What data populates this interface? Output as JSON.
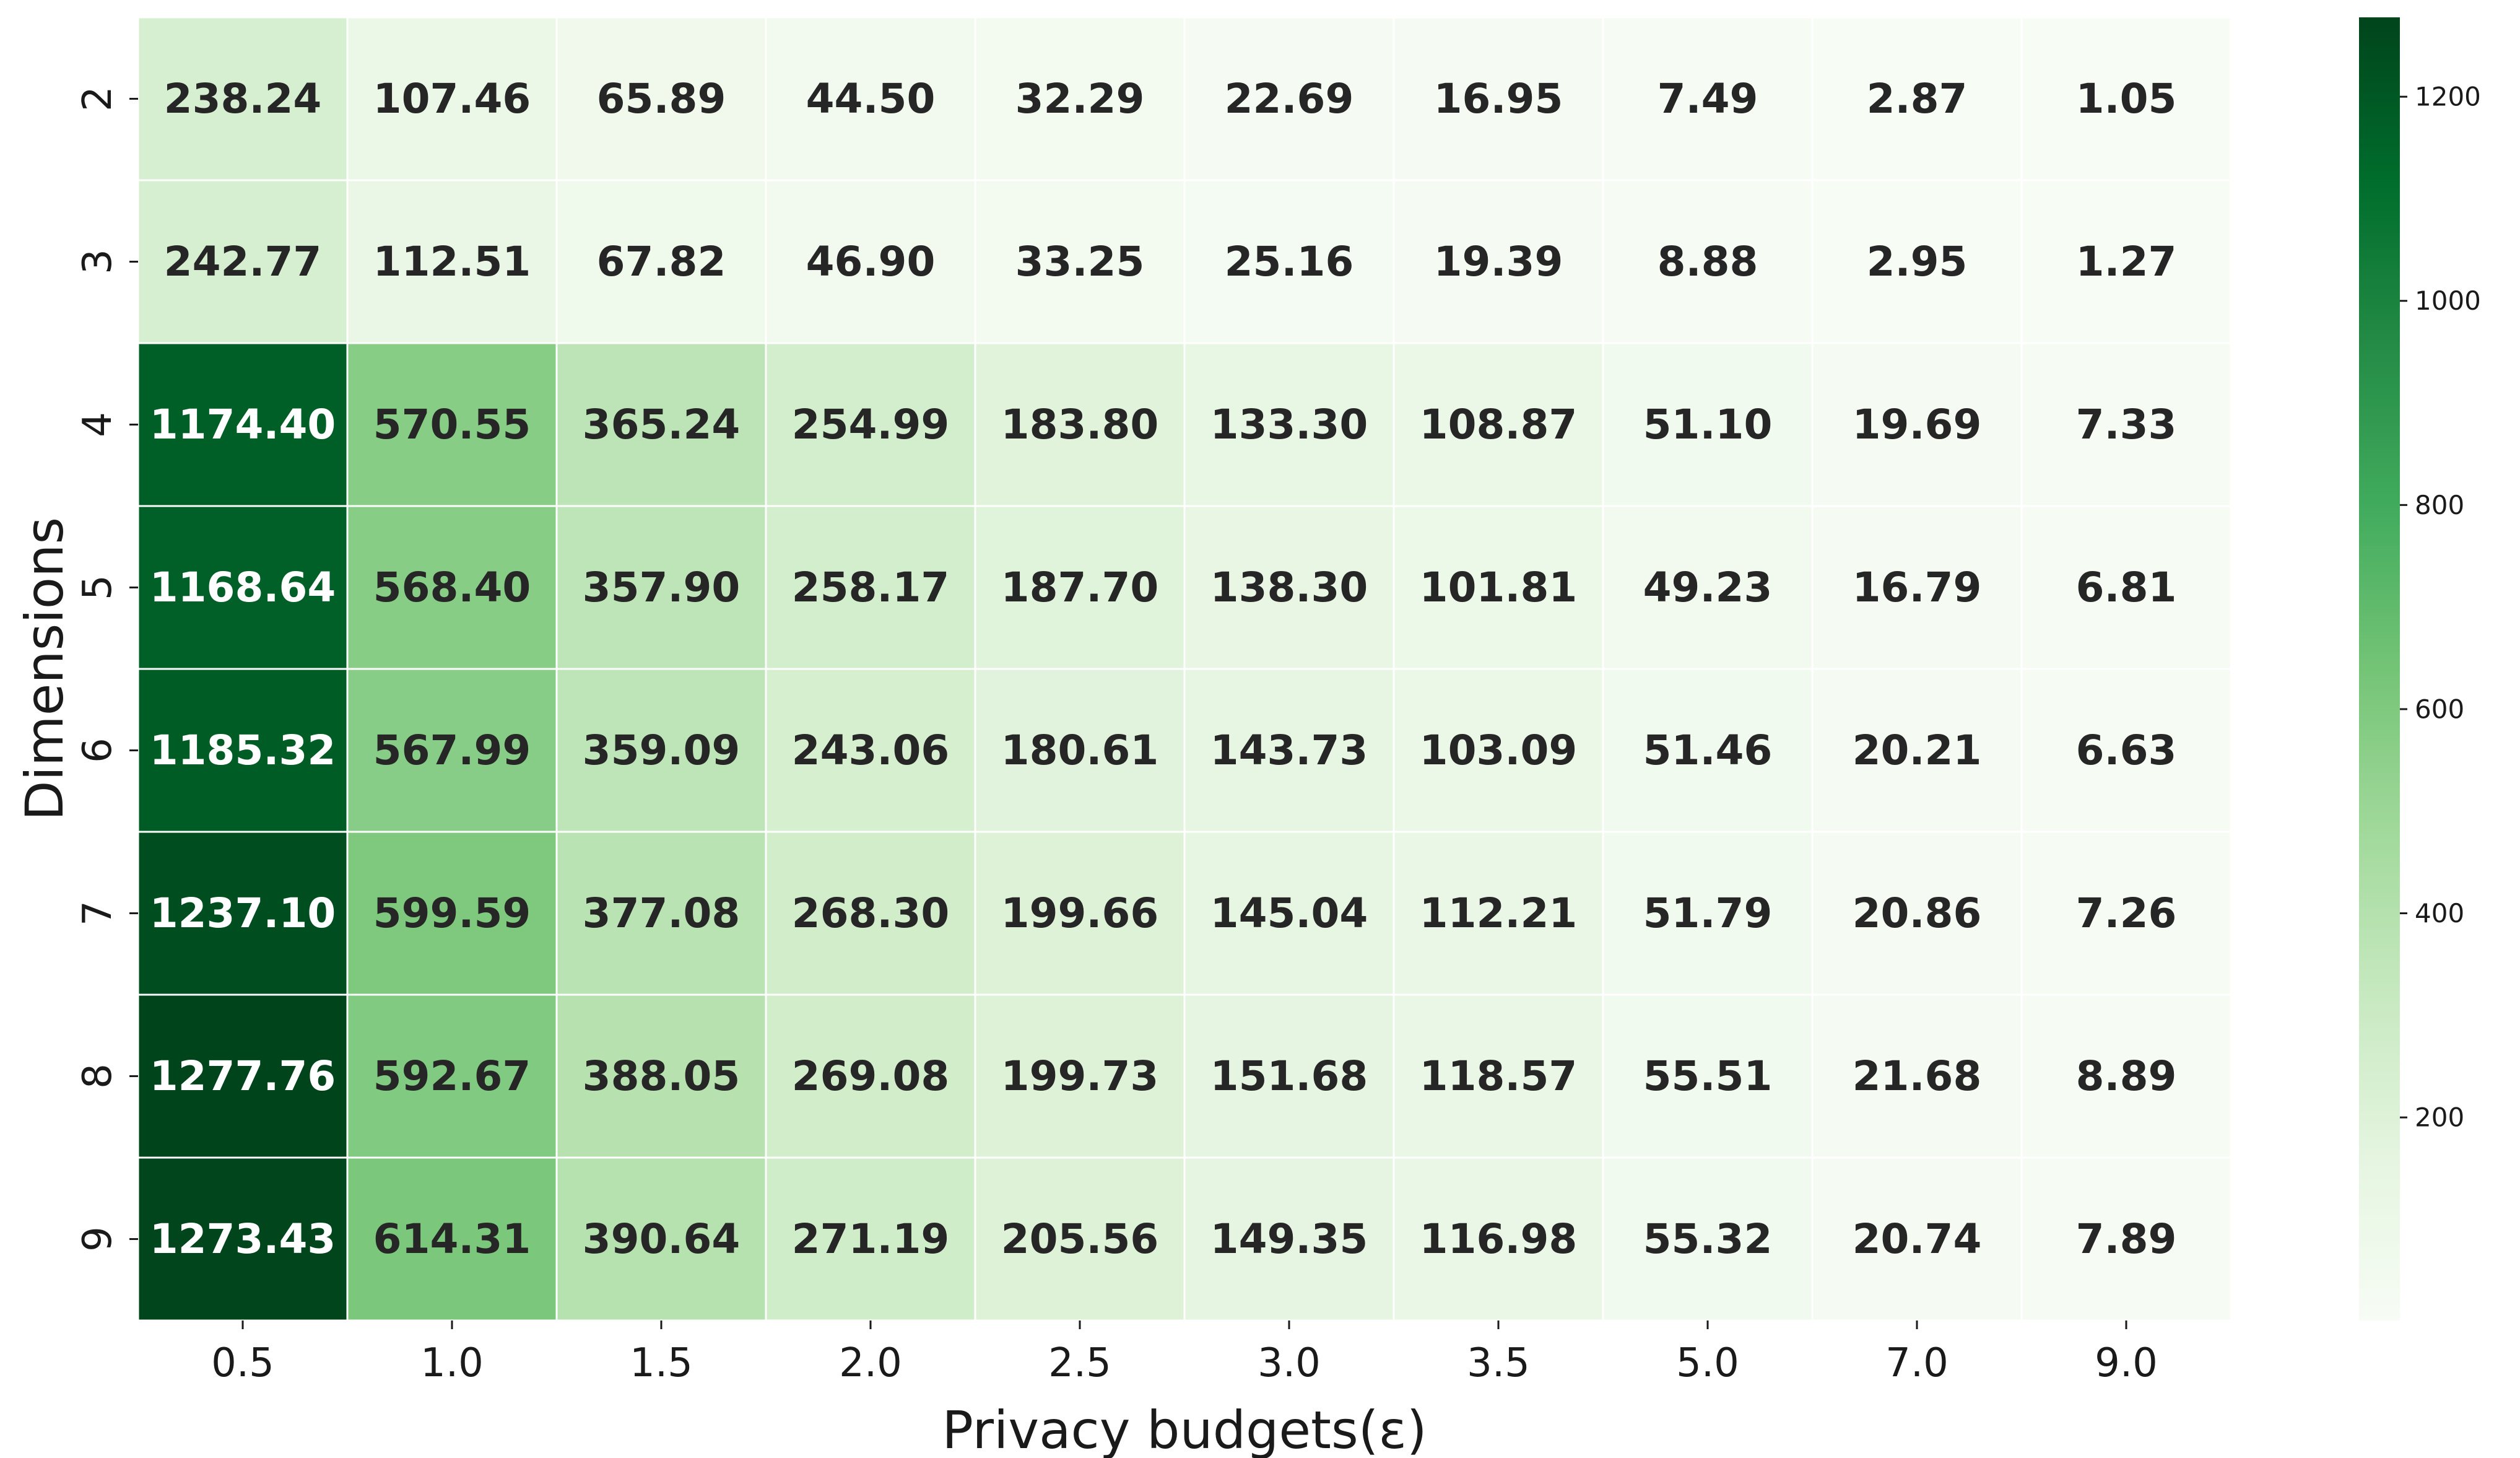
{
  "chart_data": {
    "type": "heatmap",
    "xlabel": "Privacy budgets(ε)",
    "ylabel": "Dimensions",
    "x_categories": [
      "0.5",
      "1.0",
      "1.5",
      "2.0",
      "2.5",
      "3.0",
      "3.5",
      "5.0",
      "7.0",
      "9.0"
    ],
    "y_categories": [
      "2",
      "3",
      "4",
      "5",
      "6",
      "7",
      "8",
      "9"
    ],
    "values": [
      [
        238.24,
        107.46,
        65.89,
        44.5,
        32.29,
        22.69,
        16.95,
        7.49,
        2.87,
        1.05
      ],
      [
        242.77,
        112.51,
        67.82,
        46.9,
        33.25,
        25.16,
        19.39,
        8.88,
        2.95,
        1.27
      ],
      [
        1174.4,
        570.55,
        365.24,
        254.99,
        183.8,
        133.3,
        108.87,
        51.1,
        19.69,
        7.33
      ],
      [
        1168.64,
        568.4,
        357.9,
        258.17,
        187.7,
        138.3,
        101.81,
        49.23,
        16.79,
        6.81
      ],
      [
        1185.32,
        567.99,
        359.09,
        243.06,
        180.61,
        143.73,
        103.09,
        51.46,
        20.21,
        6.63
      ],
      [
        1237.1,
        599.59,
        377.08,
        268.3,
        199.66,
        145.04,
        112.21,
        51.79,
        20.86,
        7.26
      ],
      [
        1277.76,
        592.67,
        388.05,
        269.08,
        199.73,
        151.68,
        118.57,
        55.51,
        21.68,
        8.89
      ],
      [
        1273.43,
        614.31,
        390.64,
        271.19,
        205.56,
        149.35,
        116.98,
        55.32,
        20.74,
        7.89
      ]
    ],
    "value_labels": [
      [
        "238.24",
        "107.46",
        "65.89",
        "44.50",
        "32.29",
        "22.69",
        "16.95",
        "7.49",
        "2.87",
        "1.05"
      ],
      [
        "242.77",
        "112.51",
        "67.82",
        "46.90",
        "33.25",
        "25.16",
        "19.39",
        "8.88",
        "2.95",
        "1.27"
      ],
      [
        "1174.40",
        "570.55",
        "365.24",
        "254.99",
        "183.80",
        "133.30",
        "108.87",
        "51.10",
        "19.69",
        "7.33"
      ],
      [
        "1168.64",
        "568.40",
        "357.90",
        "258.17",
        "187.70",
        "138.30",
        "101.81",
        "49.23",
        "16.79",
        "6.81"
      ],
      [
        "1185.32",
        "567.99",
        "359.09",
        "243.06",
        "180.61",
        "143.73",
        "103.09",
        "51.46",
        "20.21",
        "6.63"
      ],
      [
        "1237.10",
        "599.59",
        "377.08",
        "268.30",
        "199.66",
        "145.04",
        "112.21",
        "51.79",
        "20.86",
        "7.26"
      ],
      [
        "1277.76",
        "592.67",
        "388.05",
        "269.08",
        "199.73",
        "151.68",
        "118.57",
        "55.51",
        "21.68",
        "8.89"
      ],
      [
        "1273.43",
        "614.31",
        "390.64",
        "271.19",
        "205.56",
        "149.35",
        "116.98",
        "55.32",
        "20.74",
        "7.89"
      ]
    ],
    "colormap": "Greens",
    "color_range": [
      1.05,
      1277.76
    ],
    "colorbar_ticks": [
      200,
      400,
      600,
      800,
      1000,
      1200
    ],
    "colorbar_tick_labels": [
      "200",
      "400",
      "600",
      "800",
      "1000",
      "1200"
    ],
    "colors": {
      "low": "#f7fcf5",
      "high": "#00441b",
      "cell_border": "#ffffff",
      "text_dark": "#262626",
      "text_light": "#ffffff"
    }
  }
}
